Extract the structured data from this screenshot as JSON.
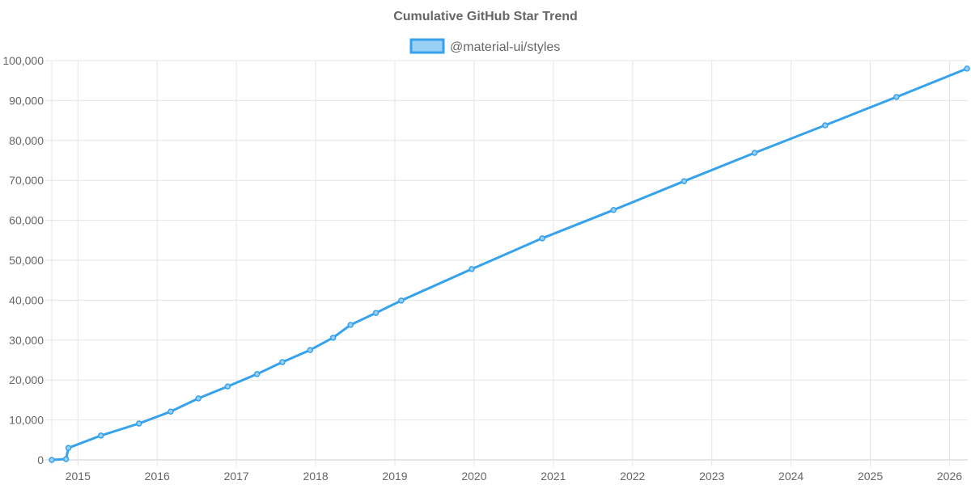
{
  "chart_data": {
    "type": "line",
    "title": "Cumulative GitHub Star Trend",
    "xlabel": "",
    "ylabel": "",
    "legend": {
      "position": "top",
      "entries": [
        "@material-ui/styles"
      ]
    },
    "grid": true,
    "xlim": [
      2014.67,
      2026.23
    ],
    "ylim": [
      0,
      100000
    ],
    "x_ticks": [
      2015,
      2016,
      2017,
      2018,
      2019,
      2020,
      2021,
      2022,
      2023,
      2024,
      2025,
      2026
    ],
    "y_ticks": [
      0,
      10000,
      20000,
      30000,
      40000,
      50000,
      60000,
      70000,
      80000,
      90000,
      100000
    ],
    "y_tick_labels": [
      "0",
      "10,000",
      "20,000",
      "30,000",
      "40,000",
      "50,000",
      "60,000",
      "70,000",
      "80,000",
      "90,000",
      "100,000"
    ],
    "series": [
      {
        "name": "@material-ui/styles",
        "color": "#36a2eb",
        "fill": "#9ad0f5",
        "x": [
          2014.67,
          2014.85,
          2014.88,
          2015.29,
          2015.77,
          2016.17,
          2016.52,
          2016.89,
          2017.26,
          2017.58,
          2017.93,
          2018.22,
          2018.44,
          2018.76,
          2019.08,
          2019.97,
          2020.86,
          2021.76,
          2022.65,
          2023.54,
          2024.43,
          2025.33,
          2026.22
        ],
        "values": [
          0,
          200,
          3000,
          6100,
          9100,
          12100,
          15400,
          18400,
          21500,
          24500,
          27500,
          30600,
          33800,
          36800,
          39900,
          47800,
          55500,
          62600,
          69800,
          76900,
          83800,
          90900,
          98000
        ]
      }
    ]
  }
}
